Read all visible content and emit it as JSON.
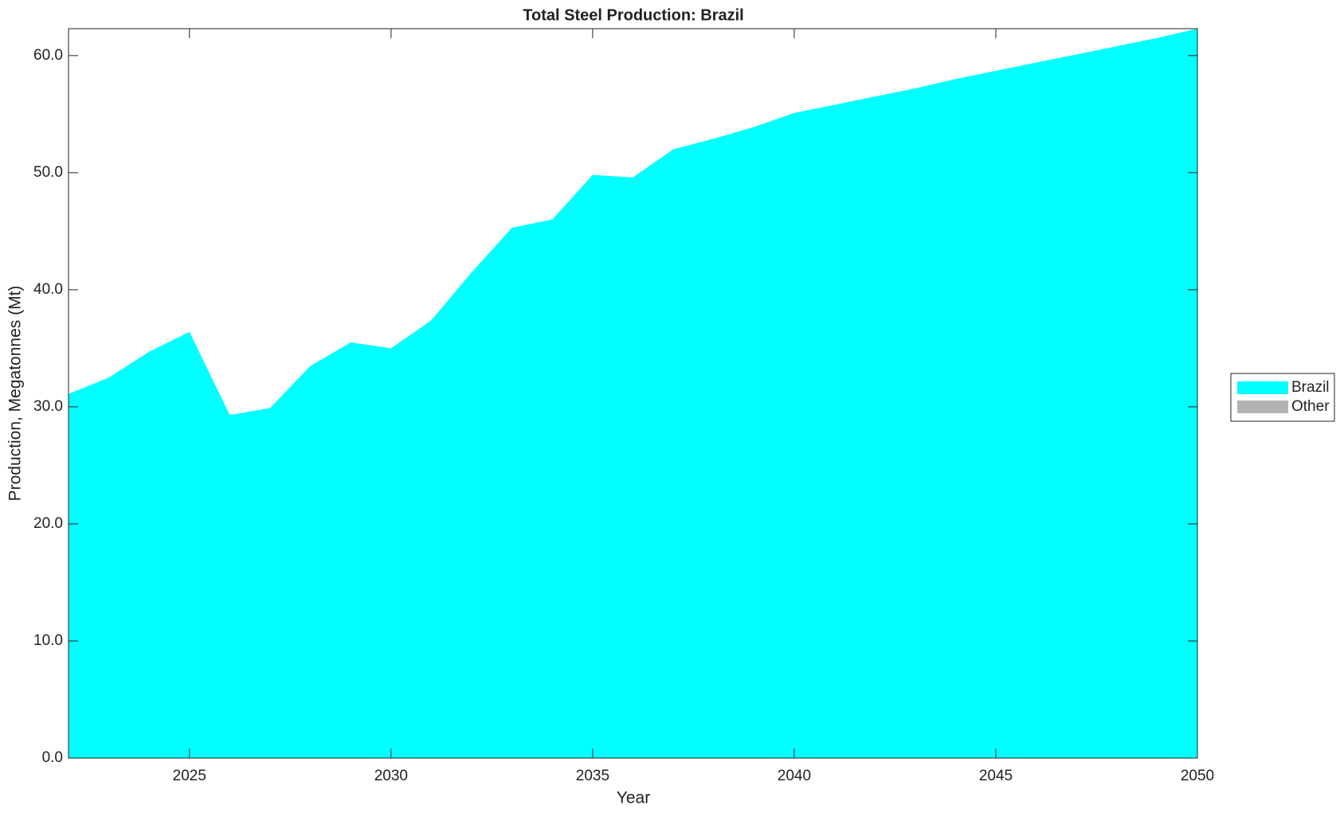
{
  "chart_data": {
    "type": "stacked_area",
    "title": "Total Steel Production: Brazil",
    "x_label": "Year",
    "y_label": "Production, Megatonnes (Mt)",
    "x": [
      2022,
      2023,
      2024,
      2025,
      2026,
      2027,
      2028,
      2029,
      2030,
      2031,
      2032,
      2033,
      2034,
      2035,
      2036,
      2037,
      2038,
      2039,
      2040,
      2041,
      2042,
      2043,
      2044,
      2045,
      2046,
      2047,
      2048,
      2049,
      2050
    ],
    "series": [
      {
        "name": "Brazil",
        "color": "#00ffff",
        "values": [
          31.1,
          32.5,
          34.7,
          36.4,
          29.3,
          29.9,
          33.5,
          35.5,
          35.0,
          37.4,
          41.5,
          45.3,
          46.0,
          49.8,
          49.6,
          52.0,
          52.9,
          53.9,
          55.1,
          55.8,
          56.5,
          57.2,
          58.0,
          58.7,
          59.4,
          60.1,
          60.8,
          61.5,
          62.3
        ]
      },
      {
        "name": "Other",
        "color": "#b3b3b3",
        "values": [
          0,
          0,
          0,
          0,
          0,
          0,
          0,
          0,
          0,
          0,
          0,
          0,
          0,
          0,
          0,
          0,
          0,
          0,
          0,
          0,
          0,
          0,
          0,
          0,
          0,
          0,
          0,
          0,
          0
        ]
      }
    ],
    "xlim": [
      2022,
      2050
    ],
    "xticks": [
      2025,
      2030,
      2035,
      2040,
      2045,
      2050
    ],
    "ylim": [
      0,
      62.3
    ],
    "yticks": [
      {
        "value": 0,
        "label": "0.0"
      },
      {
        "value": 10,
        "label": "10.0"
      },
      {
        "value": 20,
        "label": "20.0"
      },
      {
        "value": 30,
        "label": "30.0"
      },
      {
        "value": 40,
        "label": "40.0"
      },
      {
        "value": 50,
        "label": "50.0"
      },
      {
        "value": 60,
        "label": "60.0"
      }
    ],
    "legend": "right"
  }
}
